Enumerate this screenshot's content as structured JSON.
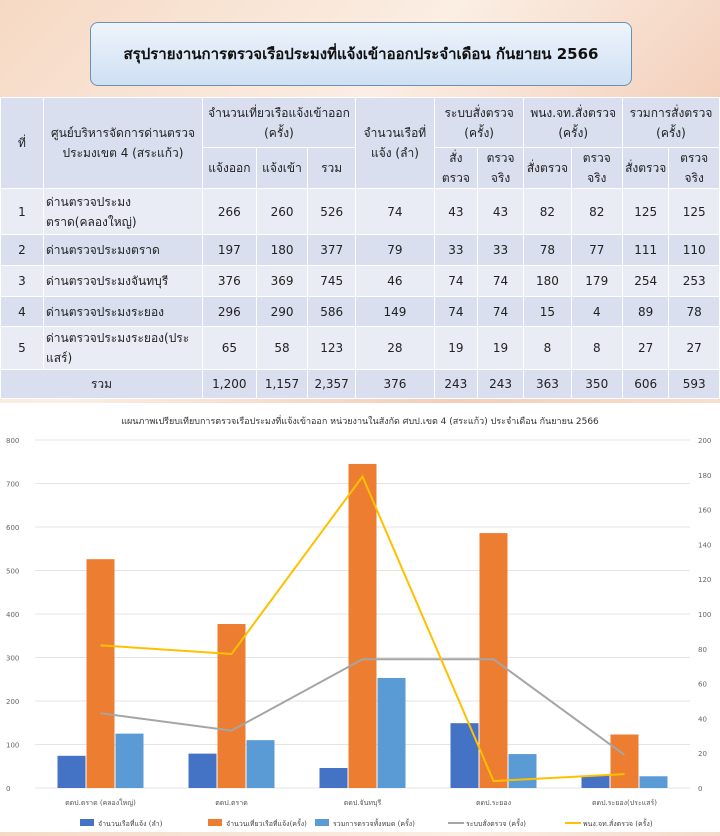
{
  "title": "สรุปรายงานการตรวจเรือประมงที่แจ้งเข้าออกประจำเดือน กันยายน 2566",
  "table": {
    "headers": {
      "no": "ที่",
      "center": "ศูนย์บริหารจัดการด่านตรวจประมงเขต 4 (สระแก้ว)",
      "trips": "จำนวนเที่ยวเรือแจ้งเข้าออก (ครั้ง)",
      "ships": "จำนวนเรือที่แจ้ง (ลำ)",
      "system": "ระบบสั่งตรวจ (ครั้ง)",
      "officer": "พนง.จท.สั่งตรวจ (ครั้ง)",
      "total": "รวมการสั่งตรวจ (ครั้ง)",
      "out": "แจ้งออก",
      "in": "แจ้งเข้า",
      "sum": "รวม",
      "ordered": "สั่งตรวจ",
      "actual": "ตรวจจริง"
    },
    "rows": [
      {
        "no": "1",
        "name": "ด่านตรวจประมงตราด(คลองใหญ่)",
        "v": [
          "266",
          "260",
          "526",
          "74",
          "43",
          "43",
          "82",
          "82",
          "125",
          "125"
        ]
      },
      {
        "no": "2",
        "name": "ด่านตรวจประมงตราด",
        "v": [
          "197",
          "180",
          "377",
          "79",
          "33",
          "33",
          "78",
          "77",
          "111",
          "110"
        ]
      },
      {
        "no": "3",
        "name": "ด่านตรวจประมงจันทบุรี",
        "v": [
          "376",
          "369",
          "745",
          "46",
          "74",
          "74",
          "180",
          "179",
          "254",
          "253"
        ]
      },
      {
        "no": "4",
        "name": "ด่านตรวจประมงระยอง",
        "v": [
          "296",
          "290",
          "586",
          "149",
          "74",
          "74",
          "15",
          "4",
          "89",
          "78"
        ]
      },
      {
        "no": "5",
        "name": "ด่านตรวจประมงระยอง(ประแสร์)",
        "v": [
          "65",
          "58",
          "123",
          "28",
          "19",
          "19",
          "8",
          "8",
          "27",
          "27"
        ]
      }
    ],
    "total": {
      "label": "รวม",
      "v": [
        "1,200",
        "1,157",
        "2,357",
        "376",
        "243",
        "243",
        "363",
        "350",
        "606",
        "593"
      ]
    }
  },
  "chart_data": {
    "type": "bar",
    "title": "แผนภาพเปรียบเทียบการตรวจเรือประมงที่แจ้งเข้าออก หน่วยงานในสังกัด ศบป.เขต 4 (สระแก้ว) ประจำเดือน กันยายน 2566",
    "categories": [
      "ตดป.ตราด (คลองใหญ่)",
      "ตดป.ตราด",
      "ตดป.จันทบุรี",
      "ตดป.ระยอง",
      "ตดป.ระยอง(ประแสร์)"
    ],
    "ylim": [
      0,
      800
    ],
    "y2lim": [
      0,
      200
    ],
    "yticks": [
      "0",
      "100",
      "200",
      "300",
      "400",
      "500",
      "600",
      "700",
      "800"
    ],
    "y2ticks": [
      "0",
      "20",
      "40",
      "60",
      "80",
      "100",
      "120",
      "140",
      "160",
      "180",
      "200"
    ],
    "legend_position": "bottom",
    "series": [
      {
        "name": "จำนวนเรือที่แจ้ง (ลำ)",
        "type": "bar",
        "axis": "left",
        "color": "#4472c4",
        "values": [
          74,
          79,
          46,
          149,
          28
        ]
      },
      {
        "name": "จำนวนเที่ยวเรือที่แจ้ง(ครั้ง)",
        "type": "bar",
        "axis": "left",
        "color": "#ed7d31",
        "values": [
          526,
          377,
          745,
          586,
          123
        ]
      },
      {
        "name": "รวมการตรวจทั้งหมด (ครั้ง)",
        "type": "bar",
        "axis": "left",
        "color": "#5b9bd5",
        "values": [
          125,
          110,
          253,
          78,
          27
        ]
      },
      {
        "name": "ระบบสั่งตรวจ (ครั้ง)",
        "type": "line",
        "axis": "right",
        "color": "#a5a5a5",
        "values": [
          43,
          33,
          74,
          74,
          19
        ]
      },
      {
        "name": "พนง.จท.สั่งตรวจ (ครั้ง)",
        "type": "line",
        "axis": "right",
        "color": "#ffc000",
        "values": [
          82,
          77,
          179,
          4,
          8
        ]
      }
    ]
  }
}
